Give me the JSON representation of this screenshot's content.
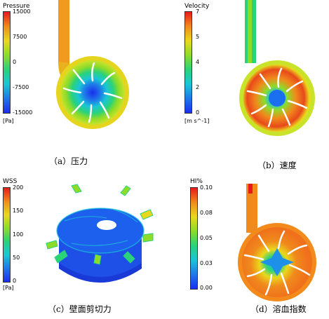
{
  "panels": {
    "a": {
      "colorbar_title": "Pressure",
      "ticks": [
        "15000",
        "7500",
        "0",
        "-7500",
        "-15000"
      ],
      "unit": "[Pa]",
      "caption": "（a）压力"
    },
    "b": {
      "colorbar_title": "Velocity",
      "ticks": [
        "7",
        "5",
        "4",
        "2",
        "0"
      ],
      "unit": "[m s^-1]",
      "caption": "（b）速度"
    },
    "c": {
      "colorbar_title": "WSS",
      "ticks": [
        "200",
        "150",
        "100",
        "50",
        "0"
      ],
      "unit": "[Pa]",
      "caption": "（c）壁面剪切力"
    },
    "d": {
      "colorbar_title": "HI%",
      "ticks": [
        "0.10",
        "0.08",
        "0.05",
        "0.03",
        "0.00"
      ],
      "caption": "（d）溶血指数"
    }
  },
  "colors": {
    "rainbow": [
      "#e8191b",
      "#f08a1c",
      "#e9d81c",
      "#8ddc2a",
      "#2ad27a",
      "#1ac6d6",
      "#1e78e8",
      "#1a2ef0"
    ]
  }
}
